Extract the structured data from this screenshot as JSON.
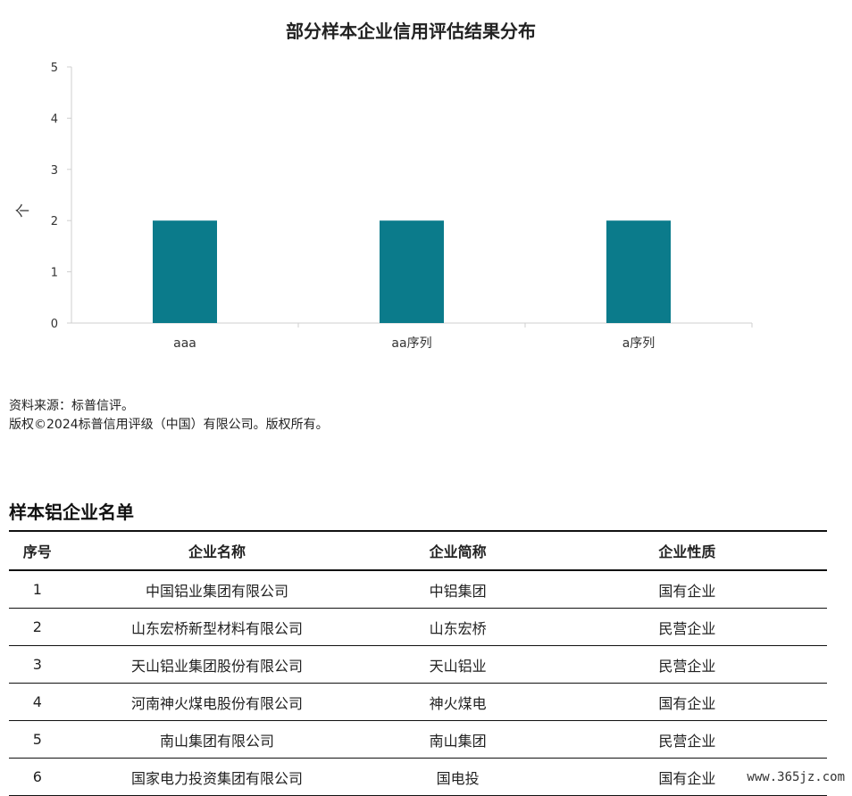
{
  "chart_data": {
    "type": "bar",
    "title": "部分样本企业信用评估结果分布",
    "ylabel": "个",
    "ylim": [
      0,
      5
    ],
    "yticks": [
      0,
      1,
      2,
      3,
      4,
      5
    ],
    "categories": [
      "aaa",
      "aa序列",
      "a序列"
    ],
    "values": [
      2,
      2,
      2
    ],
    "bar_color": "#0b7b8b",
    "grid": false
  },
  "notes": {
    "source": "资料来源：标普信评。",
    "copyright": "版权©2024标普信用评级（中国）有限公司。版权所有。"
  },
  "table": {
    "title": "样本铝企业名单",
    "headers": [
      "序号",
      "企业名称",
      "企业简称",
      "企业性质"
    ],
    "rows": [
      [
        "1",
        "中国铝业集团有限公司",
        "中铝集团",
        "国有企业"
      ],
      [
        "2",
        "山东宏桥新型材料有限公司",
        "山东宏桥",
        "民营企业"
      ],
      [
        "3",
        "天山铝业集团股份有限公司",
        "天山铝业",
        "民营企业"
      ],
      [
        "4",
        "河南神火煤电股份有限公司",
        "神火煤电",
        "国有企业"
      ],
      [
        "5",
        "南山集团有限公司",
        "南山集团",
        "民营企业"
      ],
      [
        "6",
        "国家电力投资集团有限公司",
        "国电投",
        "国有企业"
      ]
    ]
  },
  "watermark": "www.365jz.com"
}
